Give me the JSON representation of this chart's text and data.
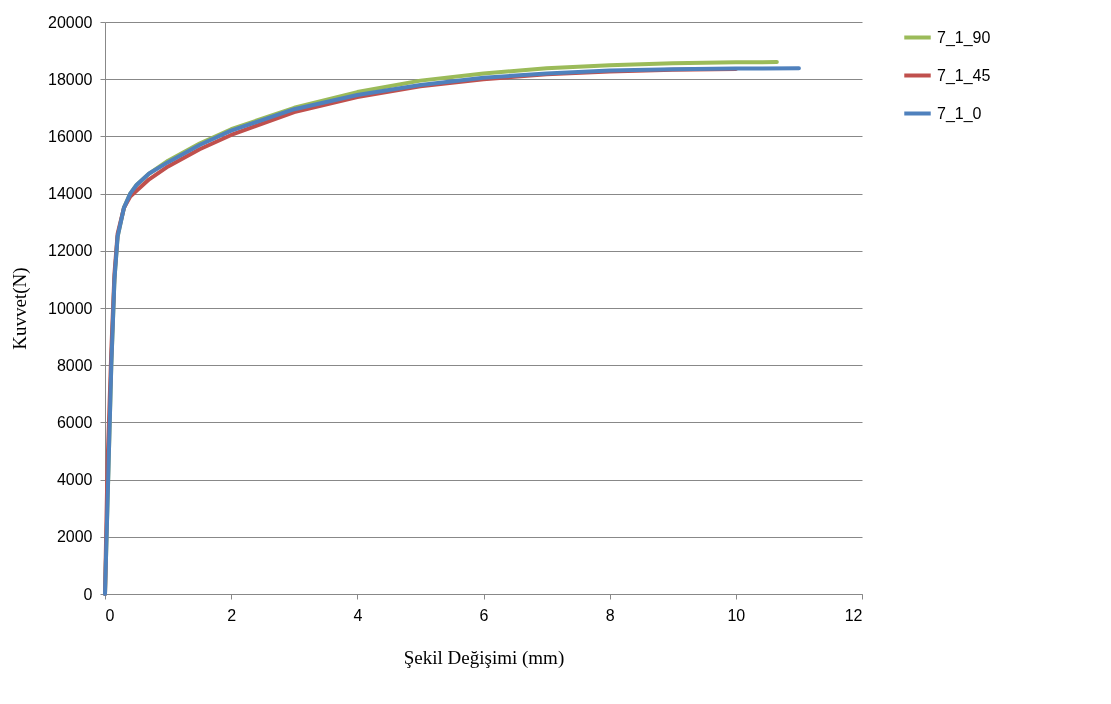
{
  "chart_data": {
    "type": "line",
    "xlabel": "Şekil Değişimi (mm)",
    "ylabel": "Kuvvet(N)",
    "xlim": [
      0,
      12
    ],
    "xticks": [
      0,
      2,
      4,
      6,
      8,
      10,
      12
    ],
    "ylim": [
      0,
      20000
    ],
    "yticks": [
      0,
      2000,
      4000,
      6000,
      8000,
      10000,
      12000,
      14000,
      16000,
      18000,
      20000
    ],
    "grid": "y",
    "legend": "right",
    "marker": "none",
    "line_style": "solid",
    "series": [
      {
        "name": "7_1_90",
        "color": "#9bbb59",
        "x": [
          0,
          0.05,
          0.1,
          0.15,
          0.2,
          0.3,
          0.4,
          0.5,
          0.7,
          1,
          1.5,
          2,
          3,
          4,
          5,
          6,
          7,
          8,
          9,
          10,
          10.65
        ],
        "values": [
          0,
          4000,
          8000,
          11000,
          12500,
          13500,
          14000,
          14300,
          14700,
          15150,
          15750,
          16250,
          17000,
          17550,
          17950,
          18200,
          18380,
          18490,
          18560,
          18590,
          18600
        ]
      },
      {
        "name": "7_1_45",
        "color": "#c0504d",
        "x": [
          0,
          0.04,
          0.1,
          0.15,
          0.2,
          0.3,
          0.4,
          0.5,
          0.7,
          1,
          1.5,
          2,
          3,
          4,
          5,
          6,
          7,
          8,
          9,
          10
        ],
        "values": [
          0,
          4500,
          8500,
          11200,
          12600,
          13500,
          13900,
          14100,
          14500,
          14950,
          15550,
          16050,
          16850,
          17380,
          17750,
          18000,
          18170,
          18270,
          18330,
          18360
        ]
      },
      {
        "name": "7_1_0",
        "color": "#4f81bd",
        "x": [
          0,
          0.05,
          0.1,
          0.15,
          0.2,
          0.3,
          0.4,
          0.5,
          0.7,
          1,
          1.5,
          2,
          3,
          4,
          5,
          6,
          7,
          8,
          9,
          10,
          11
        ],
        "values": [
          0,
          4000,
          8000,
          11000,
          12500,
          13500,
          14000,
          14300,
          14700,
          15100,
          15700,
          16200,
          16950,
          17450,
          17800,
          18050,
          18200,
          18300,
          18350,
          18370,
          18380
        ]
      }
    ]
  }
}
